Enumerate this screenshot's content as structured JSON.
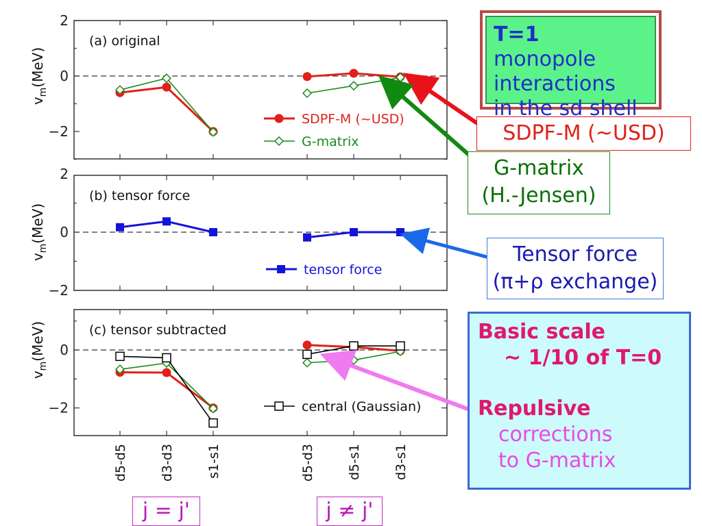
{
  "chart_data": {
    "type": "line",
    "ylabel": "v_m(MeV)",
    "categories": [
      "d5-d5",
      "d3-d3",
      "s1-s1",
      "d5-d3",
      "d5-s1",
      "d3-s1"
    ],
    "panels": [
      {
        "title": "(a) original",
        "ylim": [
          -3,
          2
        ],
        "yticks": [
          2,
          0,
          -2
        ],
        "series": [
          {
            "name": "SDPF-M (~USD)",
            "color": "#e0201a",
            "marker": "filled-circle",
            "values": [
              -0.6,
              -0.4,
              -2.0,
              -0.02,
              0.1,
              -0.03
            ]
          },
          {
            "name": "G-matrix",
            "color": "#1a8a1a",
            "marker": "open-diamond",
            "values": [
              -0.5,
              -0.08,
              -2.02,
              -0.62,
              -0.35,
              -0.05
            ]
          }
        ]
      },
      {
        "title": "(b) tensor force",
        "ylim": [
          -2,
          2
        ],
        "yticks": [
          2,
          0,
          -2
        ],
        "series": [
          {
            "name": "tensor force",
            "color": "#1414d8",
            "marker": "filled-square",
            "values": [
              0.17,
              0.37,
              0.0,
              -0.18,
              0.0,
              0.0
            ]
          }
        ]
      },
      {
        "title": "(c) tensor subtracted",
        "ylim": [
          -3,
          1.5
        ],
        "yticks": [
          0,
          -2
        ],
        "series": [
          {
            "name": "",
            "color": "#e0201a",
            "marker": "filled-circle",
            "values": [
              -0.77,
              -0.78,
              -2.0,
              0.17,
              0.1,
              -0.03
            ]
          },
          {
            "name": "",
            "color": "#1a8a1a",
            "marker": "open-diamond",
            "values": [
              -0.67,
              -0.45,
              -2.02,
              -0.44,
              -0.35,
              -0.05
            ]
          },
          {
            "name": "central (Gaussian)",
            "color": "#000000",
            "marker": "open-square",
            "values": [
              -0.22,
              -0.27,
              -2.52,
              -0.15,
              0.14,
              0.14
            ]
          }
        ]
      }
    ],
    "legend_placement": "lower-right"
  },
  "callouts": {
    "t1": {
      "bold": "T=1",
      "rest": " monopole",
      "line2": "interactions",
      "line3": "in the sd shell"
    },
    "sdpf": "SDPF-M  (~USD)",
    "gmatrix": {
      "line1": "G-matrix",
      "line2": "(H.-Jensen)"
    },
    "tensor": {
      "line1": "Tensor force",
      "line2": "(π+ρ exchange)"
    },
    "basic": {
      "line1": "Basic scale",
      "line2": "~ 1/10 of T=0",
      "line3": "Repulsive",
      "line4": "corrections",
      "line5": "to G-matrix"
    },
    "jeq": "j = j'",
    "jne": "j ≠ j'"
  },
  "colors": {
    "red": "#e0201a",
    "green": "#1a8a1a",
    "blue": "#1414d8",
    "arrow_red": "#e8121a",
    "arrow_green": "#108a10",
    "arrow_blue": "#1a6ae8",
    "arrow_pink": "#f07af0"
  }
}
